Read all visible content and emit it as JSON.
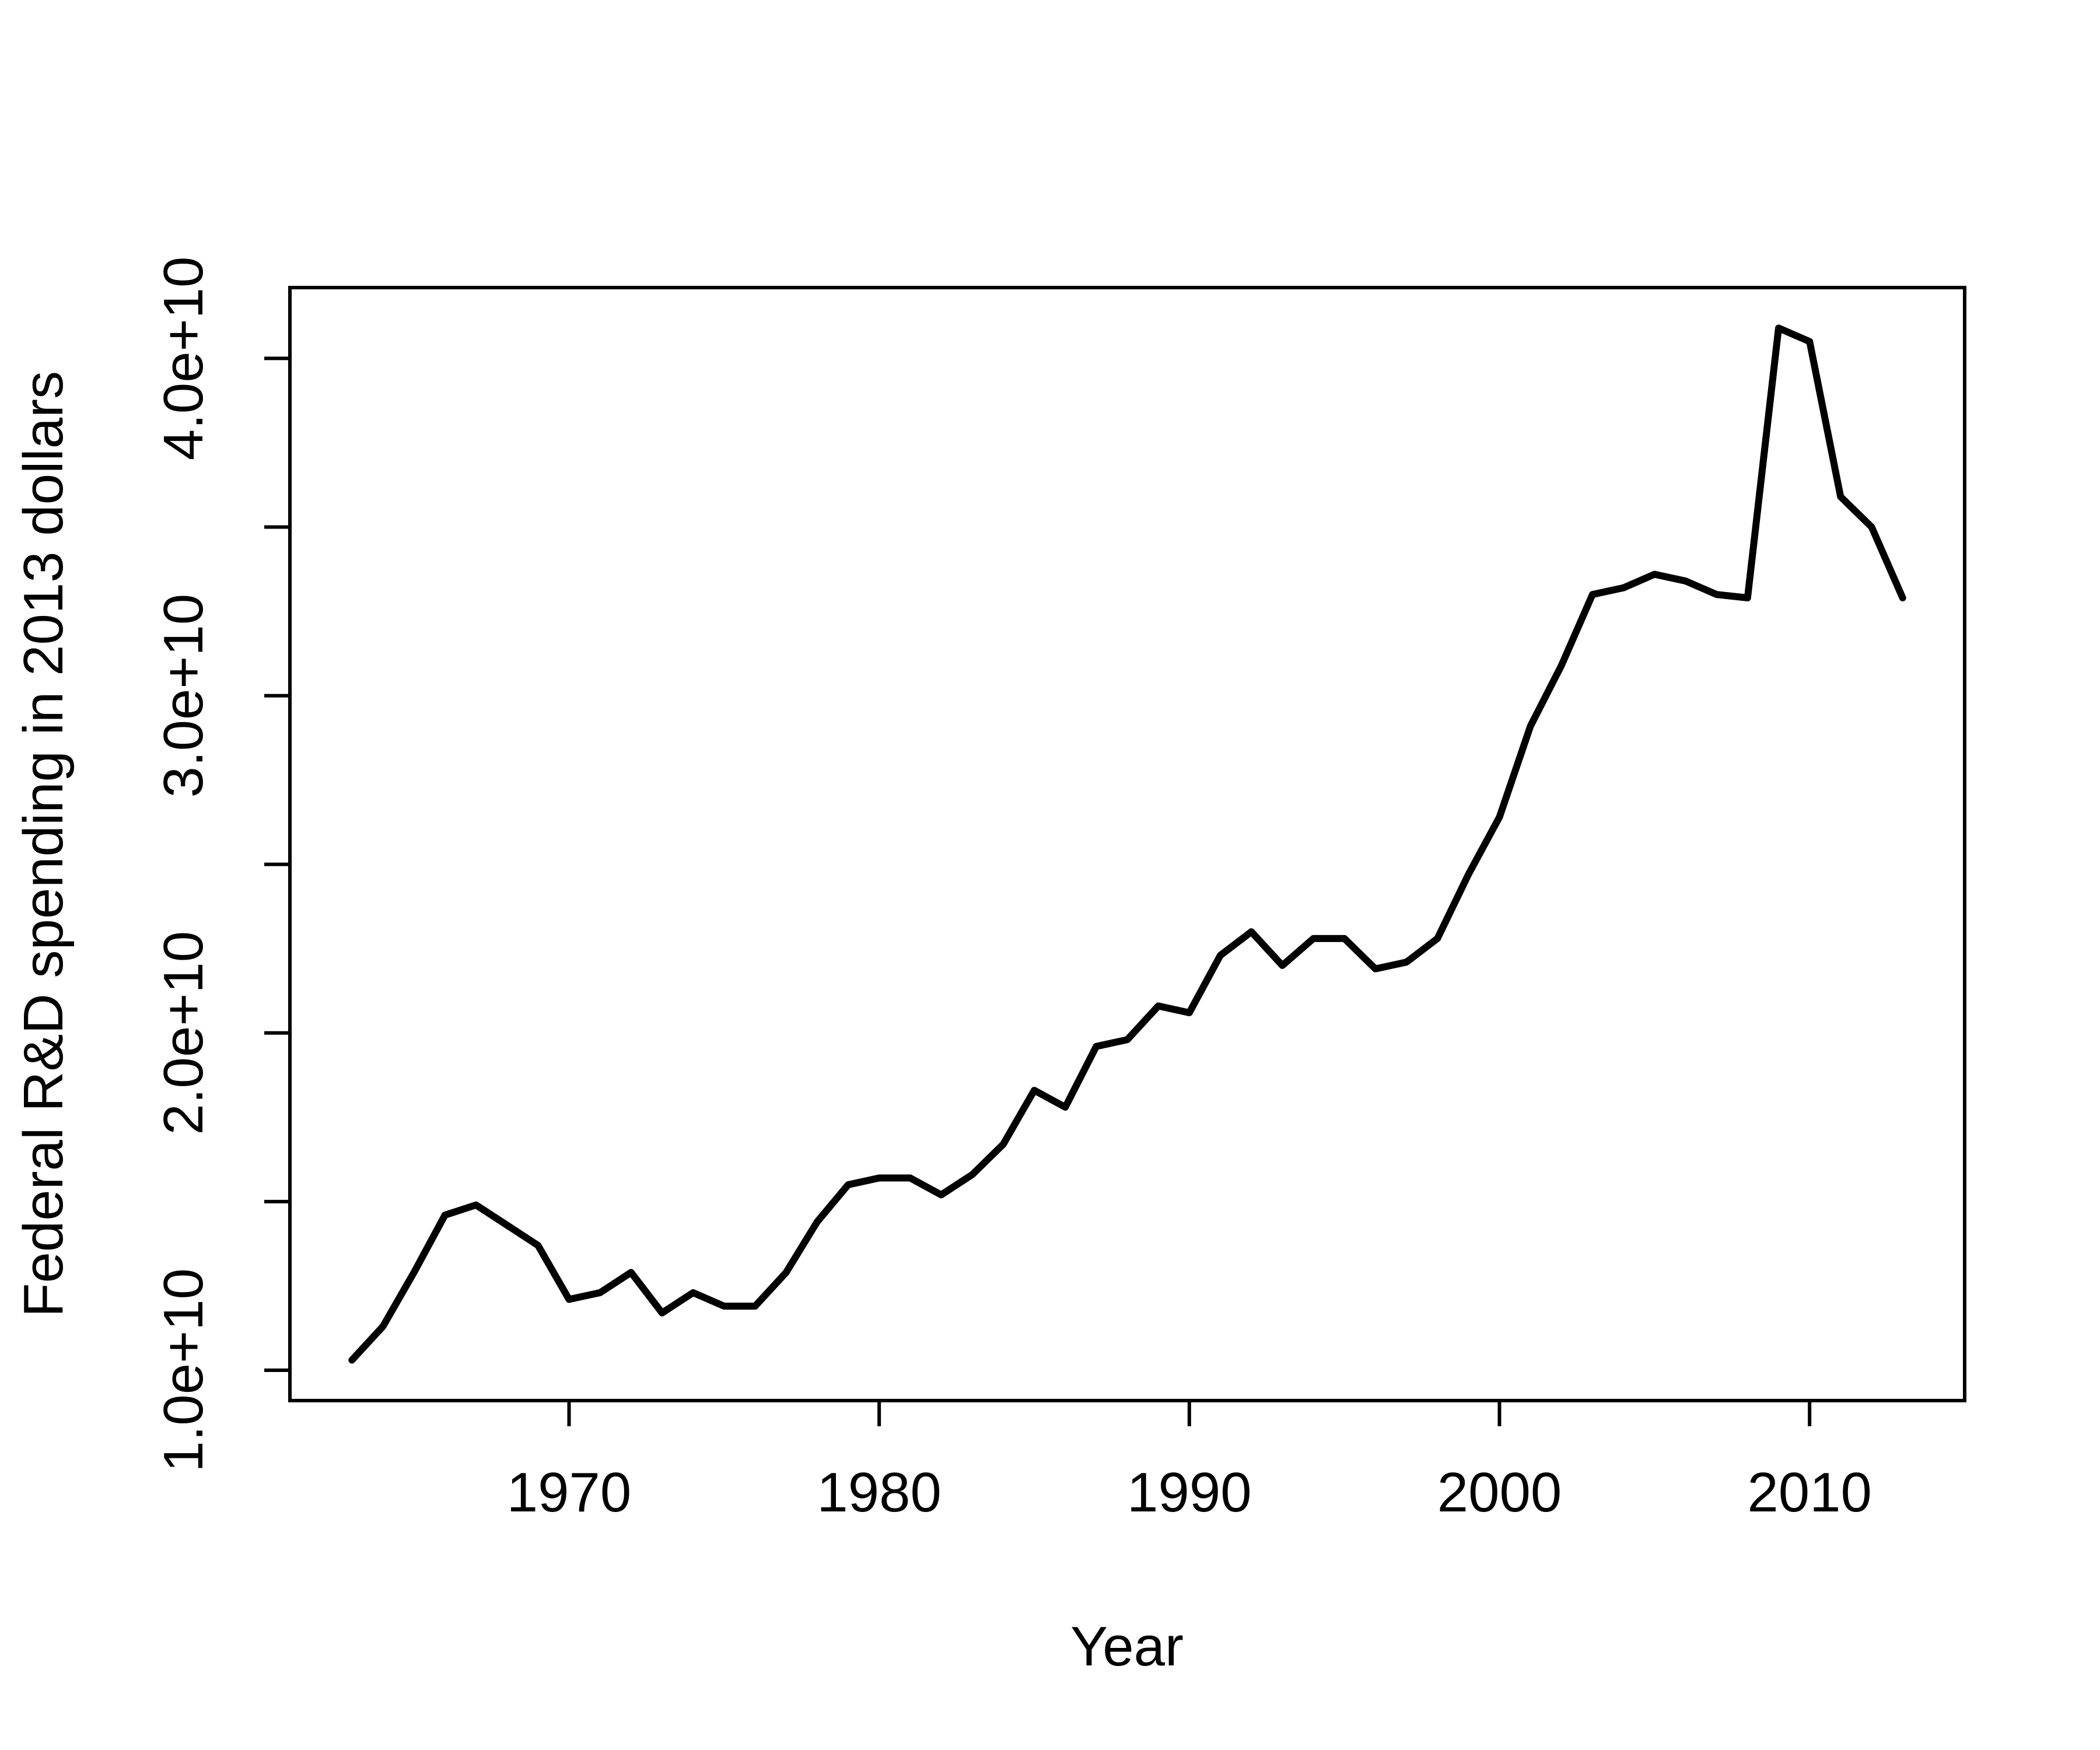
{
  "chart_data": {
    "type": "line",
    "title": "",
    "xlabel": "Year",
    "ylabel": "Federal R&D spending in 2013 dollars",
    "xlim": [
      1961.0,
      2015.0
    ],
    "ylim": [
      9100000000.0,
      42100000000.0
    ],
    "x_ticks": [
      1970,
      1980,
      1990,
      2000,
      2010
    ],
    "x_tick_labels": [
      "1970",
      "1980",
      "1990",
      "2000",
      "2010"
    ],
    "y_ticks": [
      10000000000.0,
      15000000000.0,
      20000000000.0,
      25000000000.0,
      30000000000.0,
      35000000000.0,
      40000000000.0
    ],
    "y_tick_labels": [
      "1.0e+10",
      "",
      "2.0e+10",
      "",
      "3.0e+10",
      "",
      "4.0e+10"
    ],
    "grid": false,
    "legend": "none",
    "line_color": "#000000",
    "series": [
      {
        "x": [
          1963,
          1964,
          1965,
          1966,
          1967,
          1968,
          1969,
          1970,
          1971,
          1972,
          1973,
          1974,
          1975,
          1976,
          1977,
          1978,
          1979,
          1980,
          1981,
          1982,
          1983,
          1984,
          1985,
          1986,
          1987,
          1988,
          1989,
          1990,
          1991,
          1992,
          1993,
          1994,
          1995,
          1996,
          1997,
          1998,
          1999,
          2000,
          2001,
          2002,
          2003,
          2004,
          2005,
          2006,
          2007,
          2008,
          2009,
          2010,
          2011,
          2012,
          2013
        ],
        "y": [
          10300000000.0,
          11300000000.0,
          12900000000.0,
          14600000000.0,
          14900000000.0,
          14300000000.0,
          13700000000.0,
          12100000000.0,
          12300000000.0,
          12900000000.0,
          11700000000.0,
          12300000000.0,
          11900000000.0,
          11900000000.0,
          12900000000.0,
          14400000000.0,
          15500000000.0,
          15700000000.0,
          15700000000.0,
          15200000000.0,
          15800000000.0,
          16700000000.0,
          18300000000.0,
          17800000000.0,
          19600000000.0,
          19800000000.0,
          20800000000.0,
          20600000000.0,
          22300000000.0,
          23000000000.0,
          22000000000.0,
          22800000000.0,
          22800000000.0,
          21900000000.0,
          22100000000.0,
          22800000000.0,
          24700000000.0,
          26400000000.0,
          29100000000.0,
          30900000000.0,
          33000000000.0,
          33200000000.0,
          33600000000.0,
          33400000000.0,
          33000000000.0,
          32900000000.0,
          40900000000.0,
          40500000000.0,
          35900000000.0,
          35000000000.0,
          32900000000.0
        ]
      }
    ]
  }
}
